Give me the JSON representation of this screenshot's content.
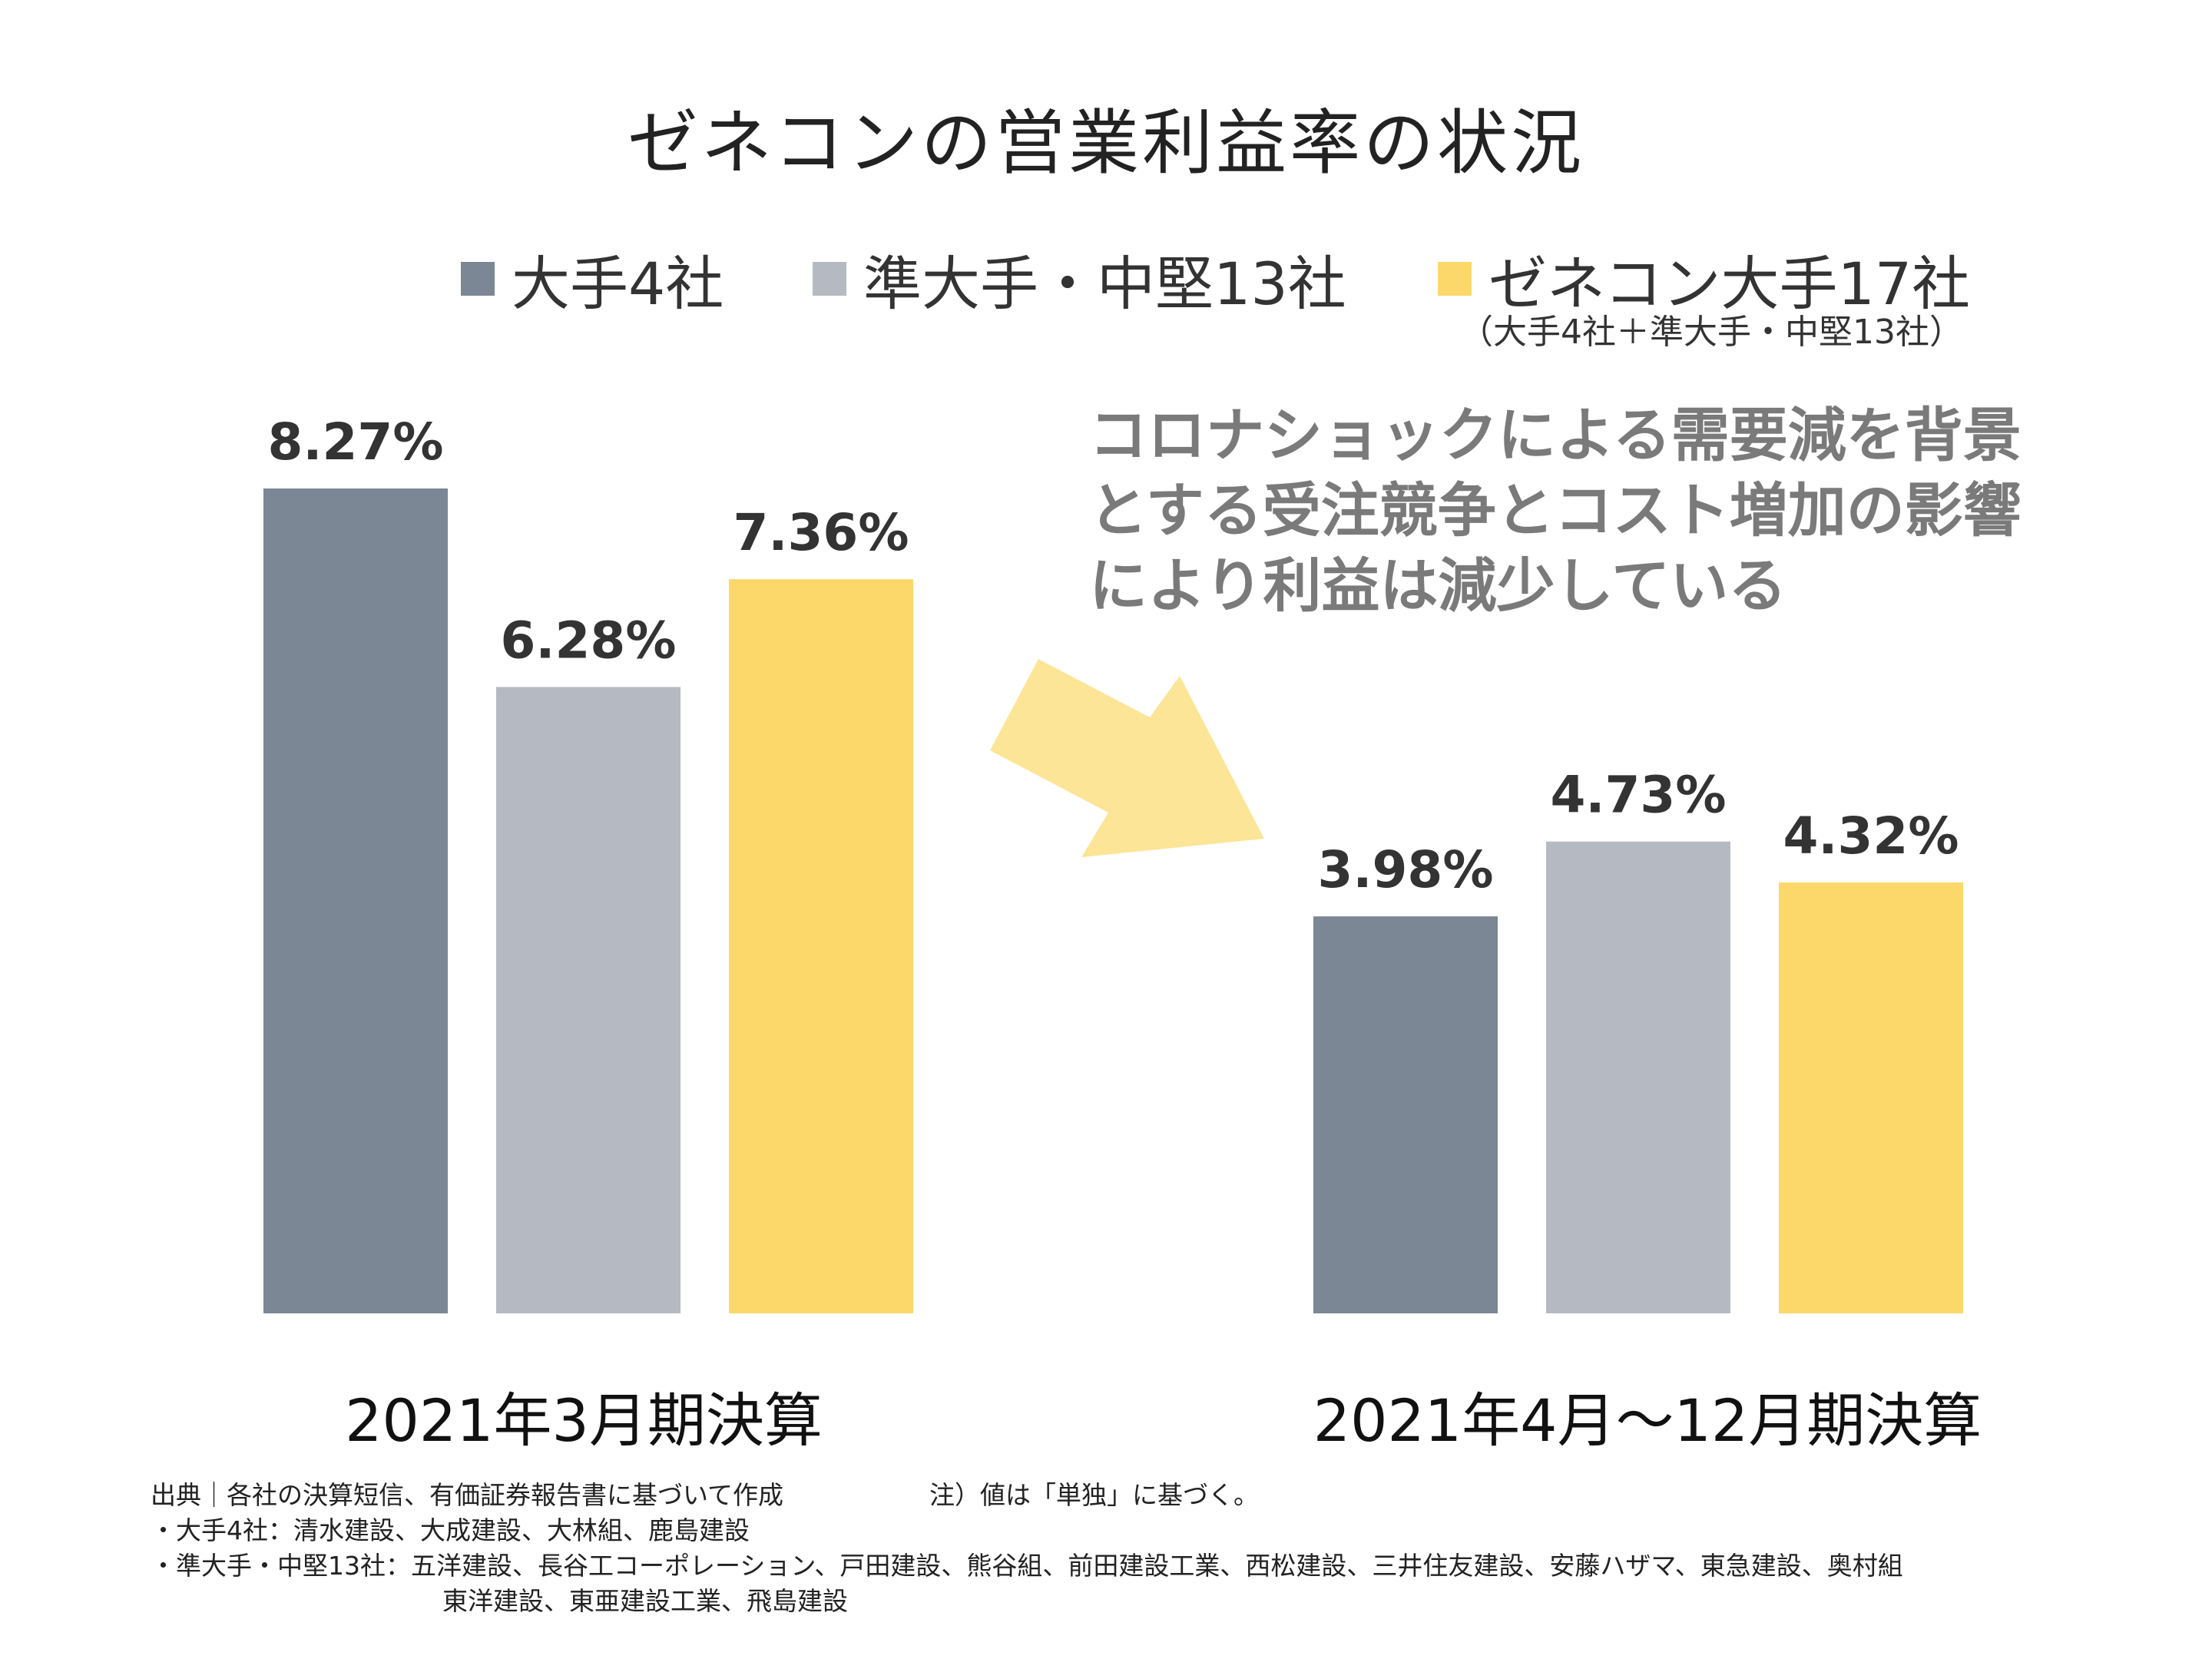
{
  "title": "ゼネコンの営業利益率の状況",
  "legend": [
    {
      "label": "大手4社",
      "color": "#7b8794"
    },
    {
      "label": "準大手・中堅13社",
      "color": "#b5bac2"
    },
    {
      "label": "ゼネコン大手17社",
      "color": "#fcd86a"
    }
  ],
  "legend_sub": "（大手4社＋準大手・中堅13社）",
  "note_lines": [
    "コロナショックによる需要減を背景",
    "とする受注競争とコスト増加の影響",
    "により利益は減少している"
  ],
  "arrow_color": "#fde597",
  "chart_data": {
    "type": "bar",
    "categories": [
      "2021年3月期決算",
      "2021年4月～12月期決算"
    ],
    "series": [
      {
        "name": "大手4社",
        "values": [
          8.27,
          3.98
        ],
        "labels": [
          "8.27%",
          "3.98%"
        ],
        "color": "#7b8794"
      },
      {
        "name": "準大手・中堅13社",
        "values": [
          6.28,
          4.73
        ],
        "labels": [
          "6.28%",
          "4.73%"
        ],
        "color": "#b5bac2"
      },
      {
        "name": "ゼネコン大手17社",
        "values": [
          7.36,
          4.32
        ],
        "labels": [
          "7.36%",
          "4.32%"
        ],
        "color": "#fcd86a"
      }
    ],
    "ylim": [
      0,
      8.27
    ],
    "grid": false,
    "legend_position": "top"
  },
  "source": {
    "line1": "出典｜各社の決算短信、有価証券報告書に基づいて作成",
    "note": "注）値は「単独」に基づく。",
    "line2": "・大手4社：清水建設、大成建設、大林組、鹿島建設",
    "line3": "・準大手・中堅13社：五洋建設、長谷工コーポレーション、戸田建設、熊谷組、前田建設工業、西松建設、三井住友建設、安藤ハザマ、東急建設、奥村組",
    "line4": "東洋建設、東亜建設工業、飛島建設"
  }
}
